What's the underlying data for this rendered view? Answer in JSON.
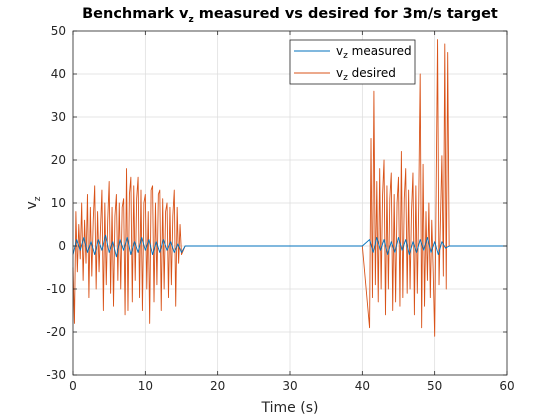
{
  "chart_data": {
    "type": "line",
    "title": "Benchmark v",
    "title_sub": "z",
    "title_rest": " measured vs desired for 3m/s target",
    "xlabel": "Time (s)",
    "ylabel": "v",
    "ylabel_sub": "z",
    "xlim": [
      0,
      60
    ],
    "ylim": [
      -30,
      50
    ],
    "xticks": [
      0,
      10,
      20,
      30,
      40,
      50,
      60
    ],
    "yticks": [
      -30,
      -20,
      -10,
      0,
      10,
      20,
      30,
      40,
      50
    ],
    "grid": true,
    "legend_position": "top-right",
    "series": [
      {
        "name": "v",
        "name_sub": "z",
        "name_rest": " measured",
        "color": "#0072BD",
        "x": [
          0,
          0.5,
          1,
          1.5,
          2,
          2.5,
          3,
          3.5,
          4,
          4.5,
          5,
          5.5,
          6,
          6.5,
          7,
          7.5,
          8,
          8.5,
          9,
          9.5,
          10,
          10.5,
          11,
          11.5,
          12,
          12.5,
          13,
          13.5,
          14,
          14.5,
          15,
          15.5,
          16,
          20,
          25,
          30,
          35,
          40,
          41,
          41.5,
          42,
          42.5,
          43,
          43.5,
          44,
          44.5,
          45,
          45.5,
          46,
          46.5,
          47,
          47.5,
          48,
          48.5,
          49,
          49.5,
          50,
          50.5,
          51,
          51.5,
          52,
          55,
          60
        ],
        "y": [
          -2,
          1.5,
          -1,
          2,
          -1.5,
          1,
          -2,
          1.5,
          -1,
          2.5,
          -1.5,
          1,
          -2.5,
          1.5,
          -1,
          2,
          -2,
          1,
          -1.5,
          2,
          -1,
          1.5,
          -2,
          1,
          -1.5,
          1.5,
          -1,
          1,
          -1.5,
          0.5,
          -1.5,
          0,
          0,
          0,
          0,
          0,
          0,
          0,
          1.5,
          -1.5,
          2,
          -1,
          1.5,
          -2,
          1,
          -1.5,
          2,
          -1,
          1.5,
          -2,
          1,
          -1.5,
          1.5,
          -1,
          2,
          -1.5,
          1,
          -2,
          1,
          -0.5,
          0,
          0,
          0
        ]
      },
      {
        "name": "v",
        "name_sub": "z",
        "name_rest": " desired",
        "color": "#D95319",
        "x": [
          0,
          0.2,
          0.4,
          0.6,
          0.8,
          1,
          1.2,
          1.4,
          1.6,
          1.8,
          2,
          2.2,
          2.4,
          2.6,
          2.8,
          3,
          3.2,
          3.4,
          3.6,
          3.8,
          4,
          4.2,
          4.4,
          4.6,
          4.8,
          5,
          5.2,
          5.4,
          5.6,
          5.8,
          6,
          6.2,
          6.4,
          6.6,
          6.8,
          7,
          7.2,
          7.4,
          7.6,
          7.8,
          8,
          8.2,
          8.4,
          8.6,
          8.8,
          9,
          9.2,
          9.4,
          9.6,
          9.8,
          10,
          10.2,
          10.4,
          10.6,
          10.8,
          11,
          11.2,
          11.4,
          11.6,
          11.8,
          12,
          12.2,
          12.4,
          12.6,
          12.8,
          13,
          13.2,
          13.4,
          13.6,
          13.8,
          14,
          14.2,
          14.4,
          14.6,
          14.8,
          15,
          15.5,
          20,
          30,
          40,
          41,
          41.2,
          41.4,
          41.6,
          41.8,
          42,
          42.2,
          42.4,
          42.6,
          42.8,
          43,
          43.2,
          43.4,
          43.6,
          43.8,
          44,
          44.2,
          44.4,
          44.6,
          44.8,
          45,
          45.2,
          45.4,
          45.6,
          45.8,
          46,
          46.2,
          46.4,
          46.6,
          46.8,
          47,
          47.2,
          47.4,
          47.6,
          47.8,
          48,
          48.2,
          48.4,
          48.6,
          48.8,
          49,
          49.2,
          49.4,
          49.6,
          49.8,
          50,
          50.2,
          50.4,
          50.6,
          50.8,
          51,
          51.2,
          51.4,
          51.6,
          51.8,
          52,
          52.5,
          55,
          60
        ],
        "y": [
          -5,
          -18,
          8,
          -6,
          5,
          -3,
          10,
          -8,
          6,
          -4,
          12,
          -12,
          9,
          -7,
          6,
          14,
          -10,
          8,
          -6,
          4,
          13,
          -15,
          10,
          -9,
          6,
          15,
          -11,
          9,
          -14,
          7,
          12,
          -8,
          10,
          -10,
          9,
          11,
          -16,
          18,
          -15,
          12,
          16,
          -13,
          14,
          -8,
          11,
          16,
          -12,
          13,
          -15,
          10,
          12,
          -10,
          8,
          -18,
          13,
          14,
          -13,
          10,
          -9,
          12,
          13,
          -15,
          11,
          -10,
          8,
          10,
          -12,
          9,
          -9,
          7,
          13,
          -14,
          9,
          -4,
          5,
          -2,
          0,
          0,
          0,
          0,
          -19,
          25,
          -12,
          36,
          -9,
          15,
          -13,
          18,
          -10,
          12,
          20,
          -16,
          14,
          -10,
          11,
          17,
          -15,
          12,
          -13,
          10,
          16,
          -14,
          22,
          -12,
          11,
          18,
          -11,
          13,
          -10,
          8,
          17,
          -16,
          14,
          -11,
          10,
          40,
          -19,
          19,
          -14,
          8,
          -8,
          10,
          -12,
          6,
          -6,
          -21,
          12,
          48,
          -9,
          6,
          21,
          -7,
          47,
          -10,
          45,
          0,
          0,
          0,
          0
        ]
      }
    ]
  }
}
